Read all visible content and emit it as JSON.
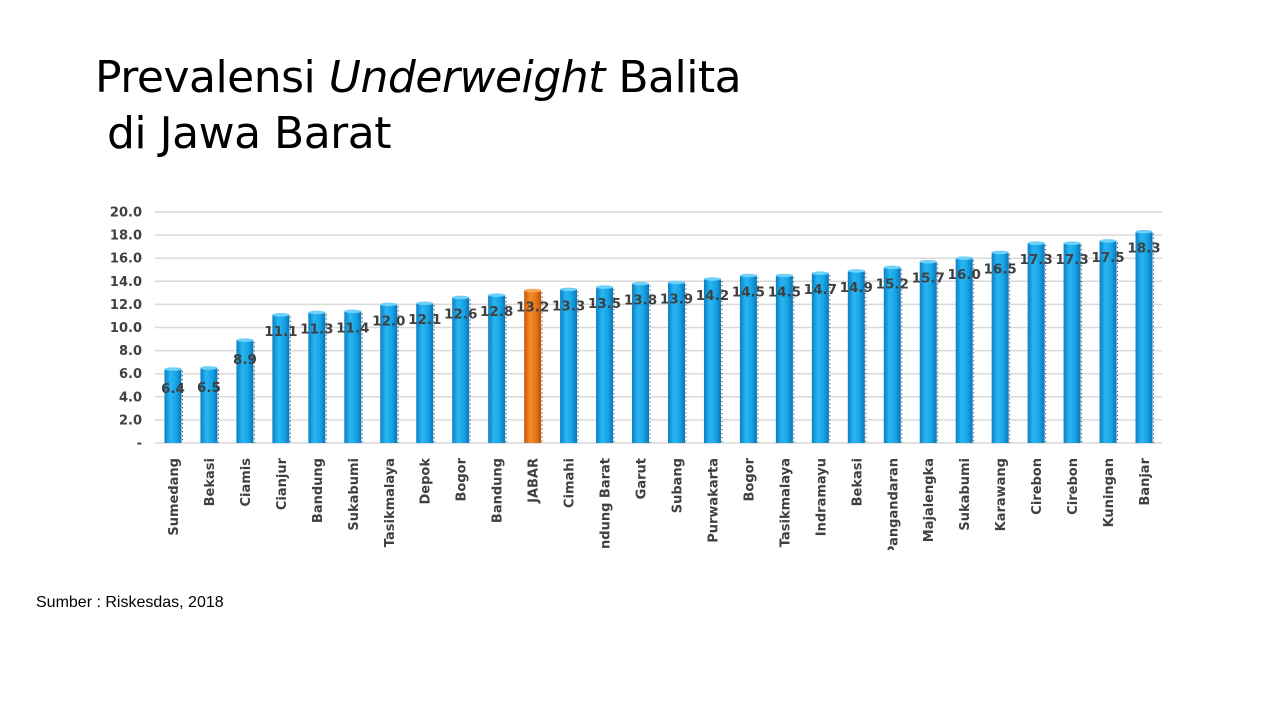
{
  "title": {
    "part1": "Prevalensi",
    "italic": "Underweight",
    "part2": "Balita",
    "line2": "di Jawa Barat"
  },
  "source": "Sumber : Riskesdas, 2018",
  "colors": {
    "bar": "#1aa7e8",
    "bar_highlight": "#e8761a",
    "grid": "#d9d9d9",
    "label": "#404040"
  },
  "chart_data": {
    "type": "bar",
    "title": "Prevalensi Underweight Balita di Jawa Barat",
    "xlabel": "",
    "ylabel": "",
    "ylim": [
      0,
      20
    ],
    "yticks": [
      "-",
      "2.0",
      "4.0",
      "6.0",
      "8.0",
      "10.0",
      "12.0",
      "14.0",
      "16.0",
      "18.0",
      "20.0"
    ],
    "grid": true,
    "highlight_category": "JABAR",
    "categories": [
      "Sumedang",
      "Bekasi",
      "Ciamis",
      "Cianjur",
      "Bandung",
      "Sukabumi",
      "Tasikmalaya",
      "Depok",
      "Bogor",
      "Bandung",
      "JABAR",
      "Cimahi",
      "Bandung Barat",
      "Garut",
      "Subang",
      "Purwakarta",
      "Bogor",
      "Tasikmalaya",
      "Indramayu",
      "Bekasi",
      "Pangandaran",
      "Majalengka",
      "Sukabumi",
      "Karawang",
      "Cirebon",
      "Cirebon",
      "Kuningan",
      "Banjar"
    ],
    "values": [
      6.4,
      6.5,
      8.9,
      11.1,
      11.3,
      11.4,
      12.0,
      12.1,
      12.6,
      12.8,
      13.2,
      13.3,
      13.5,
      13.8,
      13.9,
      14.2,
      14.5,
      14.5,
      14.7,
      14.9,
      15.2,
      15.7,
      16.0,
      16.5,
      17.3,
      17.3,
      17.5,
      18.3
    ],
    "value_labels": [
      "6.4",
      "6.5",
      "8.9",
      "11.1",
      "11.3",
      "11.4",
      "12.0",
      "12.1",
      "12.6",
      "12.8",
      "13.2",
      "13.3",
      "13.5",
      "13.8",
      "13.9",
      "14.2",
      "14.5",
      "14.5",
      "14.7",
      "14.9",
      "15.2",
      "15.7",
      "16.0",
      "16.5",
      "17.3",
      "17.3",
      "17.5",
      "18.3"
    ]
  }
}
